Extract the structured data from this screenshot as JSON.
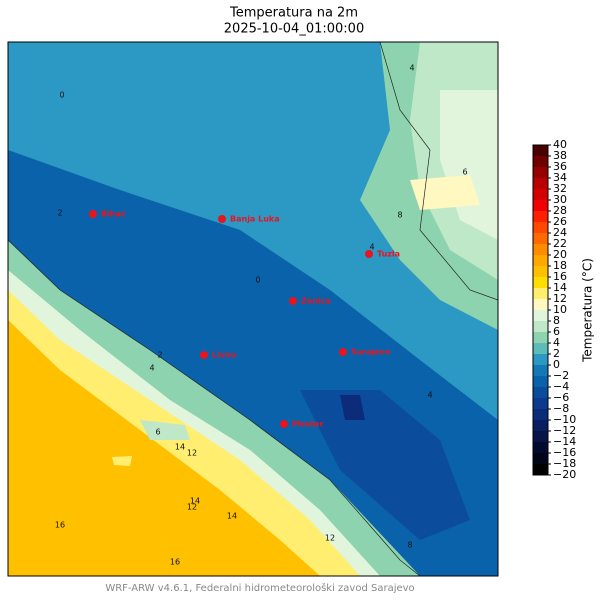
{
  "title": "Temperatura na 2m",
  "subtitle": "2025-10-04_01:00:00",
  "footer": "WRF-ARW v4.6.1, Federalni hidrometeorološki zavod Sarajevo",
  "colorbar": {
    "label": "Temperatura (°C)",
    "ticks": [
      {
        "value": -20,
        "label": "−20"
      },
      {
        "value": -18,
        "label": "−18"
      },
      {
        "value": -16,
        "label": "−16"
      },
      {
        "value": -14,
        "label": "−14"
      },
      {
        "value": -12,
        "label": "−12"
      },
      {
        "value": -10,
        "label": "−10"
      },
      {
        "value": -8,
        "label": "−8"
      },
      {
        "value": -6,
        "label": "−6"
      },
      {
        "value": -4,
        "label": "−4"
      },
      {
        "value": -2,
        "label": "−2"
      },
      0,
      2,
      4,
      6,
      8,
      10,
      12,
      14,
      16,
      18,
      20,
      22,
      24,
      26,
      28,
      30,
      32,
      34,
      36,
      38,
      40
    ],
    "colors": [
      "#000000",
      "#020518",
      "#030a30",
      "#061448",
      "#0a1f60",
      "#0c2b78",
      "#0d3a8c",
      "#0b4d9c",
      "#0a62aa",
      "#1279b4",
      "#2c98c4",
      "#5cbcb8",
      "#8dd3b0",
      "#bfe8c8",
      "#e0f5dc",
      "#fff8c0",
      "#ffee70",
      "#ffdd00",
      "#ffc000",
      "#ffa800",
      "#ff8c00",
      "#ff6a00",
      "#ff4800",
      "#ff2000",
      "#f00000",
      "#d40000",
      "#b80000",
      "#960000",
      "#700000",
      "#4a0000"
    ]
  },
  "cities": [
    "Bihać",
    "Banja Luka",
    "Tuzla",
    "Zenica",
    "Livno",
    "Sarajevo",
    "Mostar"
  ],
  "contour_labels": [
    "4",
    "0",
    "2",
    "6",
    "8",
    "4",
    "0",
    "2",
    "4",
    "6",
    "14",
    "12",
    "14",
    "12",
    "16",
    "16",
    "14",
    "12",
    "8",
    "4"
  ]
}
